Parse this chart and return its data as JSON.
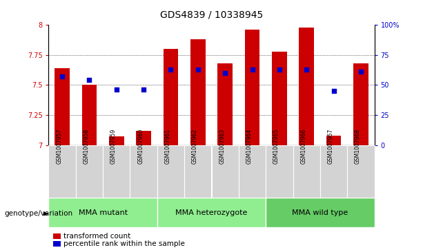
{
  "title": "GDS4839 / 10338945",
  "samples": [
    "GSM1007957",
    "GSM1007958",
    "GSM1007959",
    "GSM1007960",
    "GSM1007961",
    "GSM1007962",
    "GSM1007963",
    "GSM1007964",
    "GSM1007965",
    "GSM1007966",
    "GSM1007967",
    "GSM1007968"
  ],
  "bar_values": [
    7.64,
    7.5,
    7.07,
    7.12,
    7.8,
    7.88,
    7.68,
    7.96,
    7.78,
    7.98,
    7.08,
    7.68
  ],
  "dot_percentiles": [
    57,
    54,
    46,
    46,
    63,
    63,
    60,
    63,
    63,
    63,
    45,
    61
  ],
  "ylim_left": [
    7.0,
    8.0
  ],
  "ylim_right": [
    0,
    100
  ],
  "yticks_left": [
    7.0,
    7.25,
    7.5,
    7.75,
    8.0
  ],
  "ytick_labels_left": [
    "7",
    "7.25",
    "7.5",
    "7.75",
    "8"
  ],
  "yticks_right": [
    0,
    25,
    50,
    75,
    100
  ],
  "ytick_labels_right": [
    "0",
    "25",
    "50",
    "75",
    "100%"
  ],
  "bar_color": "#cc0000",
  "dot_color": "#0000cc",
  "bar_bottom": 7.0,
  "groups": [
    {
      "label": "MMA mutant",
      "start": 0,
      "end": 3,
      "color": "#90ee90"
    },
    {
      "label": "MMA heterozygote",
      "start": 4,
      "end": 7,
      "color": "#90ee90"
    },
    {
      "label": "MMA wild type",
      "start": 8,
      "end": 11,
      "color": "#66cc66"
    }
  ],
  "genotype_label": "genotype/variation",
  "legend_bar_label": "transformed count",
  "legend_dot_label": "percentile rank within the sample",
  "grid_lines": [
    7.25,
    7.5,
    7.75
  ],
  "title_fontsize": 10,
  "tick_fontsize": 7,
  "sample_fontsize": 5.5,
  "group_fontsize": 8,
  "legend_fontsize": 7.5
}
